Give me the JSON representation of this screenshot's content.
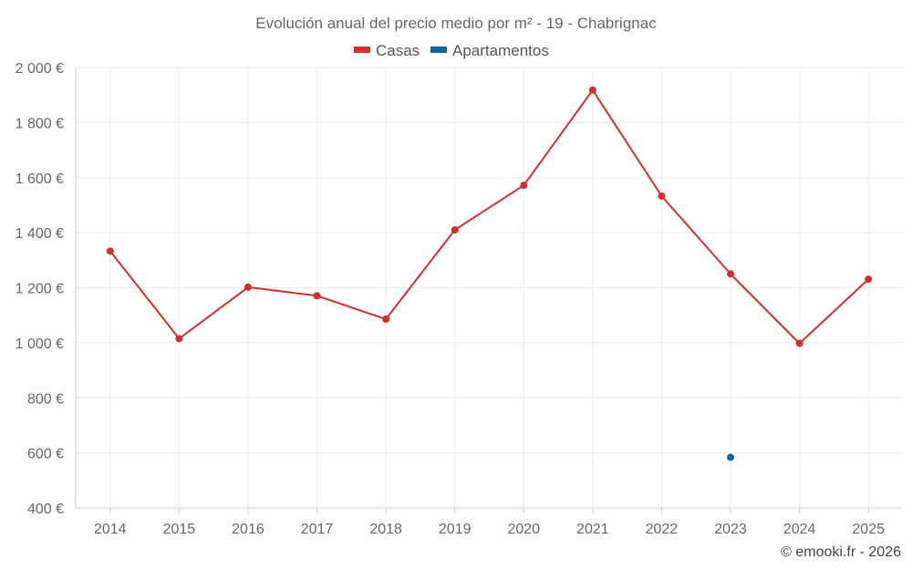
{
  "chart_data": {
    "type": "line",
    "title": "Evolución anual del precio medio por m² - 19 - Chabrignac",
    "x": [
      "2014",
      "2015",
      "2016",
      "2017",
      "2018",
      "2019",
      "2020",
      "2021",
      "2022",
      "2023",
      "2024",
      "2025"
    ],
    "series": [
      {
        "name": "Casas",
        "color": "#d32f2f",
        "values": [
          1333,
          1015,
          1202,
          1171,
          1086,
          1410,
          1572,
          1918,
          1533,
          1250,
          998,
          1231
        ]
      },
      {
        "name": "Apartamentos",
        "color": "#1565a0",
        "values": [
          null,
          null,
          null,
          null,
          null,
          null,
          null,
          null,
          null,
          584,
          null,
          null
        ]
      }
    ],
    "yticks": [
      400,
      600,
      800,
      1000,
      1200,
      1400,
      1600,
      1800,
      2000
    ],
    "ytick_labels": [
      "400 €",
      "600 €",
      "800 €",
      "1 000 €",
      "1 200 €",
      "1 400 €",
      "1 600 €",
      "1 800 €",
      "2 000 €"
    ],
    "ylim": [
      400,
      2000
    ],
    "xlabel": "",
    "ylabel": "",
    "grid": true,
    "legend_position": "top-center",
    "credit": "© emooki.fr - 2026"
  }
}
